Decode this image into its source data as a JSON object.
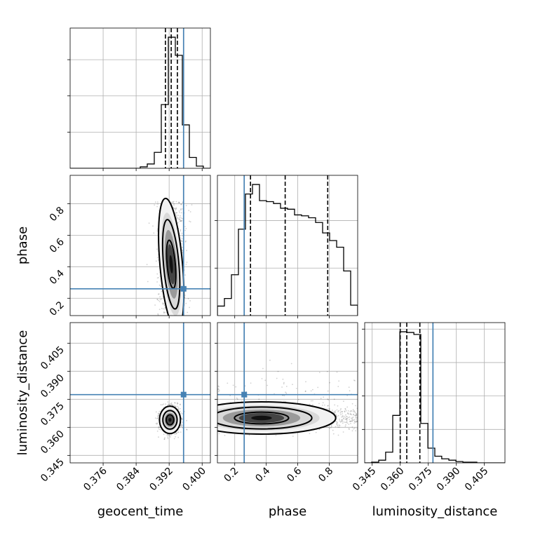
{
  "chart_data": {
    "type": "corner",
    "truth_color": "#4682b4",
    "hist_color": "#000000",
    "parameters": [
      {
        "name": "geocent_time",
        "label": "geocent_time",
        "range": [
          0.368,
          0.402
        ],
        "ticks": [
          0.376,
          0.384,
          0.392,
          0.4
        ],
        "tick_labels": [
          "0.376",
          "0.384",
          "0.392",
          "0.400"
        ],
        "truth": 0.3955
      },
      {
        "name": "phase",
        "label": "phase",
        "range": [
          0.09,
          0.98
        ],
        "ticks": [
          0.2,
          0.4,
          0.6,
          0.8
        ],
        "tick_labels": [
          "0.2",
          "0.4",
          "0.6",
          "0.8"
        ],
        "truth": 0.26
      },
      {
        "name": "luminosity_distance",
        "label": "luminosity_distance",
        "range": [
          0.341,
          0.416
        ],
        "ticks": [
          0.345,
          0.36,
          0.375,
          0.39,
          0.405
        ],
        "tick_labels": [
          "0.345",
          "0.360",
          "0.375",
          "0.390",
          "0.405"
        ],
        "truth": 0.3775
      }
    ],
    "histograms": [
      {
        "param": "geocent_time",
        "bin_edges": [
          0.368,
          0.3697,
          0.3714,
          0.3731,
          0.3748,
          0.3765,
          0.3782,
          0.3799,
          0.3816,
          0.3833,
          0.385,
          0.3867,
          0.3884,
          0.3901,
          0.3918,
          0.3935,
          0.3952,
          0.3969,
          0.3986,
          0.4003,
          0.402
        ],
        "counts": [
          0,
          0,
          0,
          0,
          0,
          0,
          0,
          0,
          0,
          0,
          2,
          6,
          22,
          88,
          181,
          156,
          60,
          15,
          3,
          0
        ],
        "quantiles": [
          0.3911,
          0.3925,
          0.394
        ]
      },
      {
        "param": "phase",
        "bin_edges": [
          0.09,
          0.1345,
          0.179,
          0.2235,
          0.268,
          0.3125,
          0.357,
          0.4015,
          0.446,
          0.4905,
          0.535,
          0.5795,
          0.624,
          0.6685,
          0.713,
          0.7575,
          0.802,
          0.8465,
          0.891,
          0.9355,
          0.98
        ],
        "counts": [
          10,
          18,
          43,
          91,
          128,
          138,
          121,
          120,
          118,
          113,
          112,
          106,
          105,
          103,
          98,
          87,
          79,
          72,
          47,
          11
        ],
        "quantiles": [
          0.3,
          0.52,
          0.79
        ]
      },
      {
        "param": "luminosity_distance",
        "bin_edges": [
          0.341,
          0.3447,
          0.3485,
          0.3522,
          0.356,
          0.3598,
          0.3635,
          0.3673,
          0.371,
          0.3748,
          0.3785,
          0.3822,
          0.386,
          0.3898,
          0.3935,
          0.3972,
          0.401,
          0.4048,
          0.4085,
          0.4122,
          0.416
        ],
        "counts": [
          0,
          1,
          4,
          16,
          71,
          196,
          195,
          192,
          59,
          22,
          10,
          6,
          4,
          2,
          1,
          1,
          0,
          0,
          0,
          0
        ],
        "quantiles": [
          0.36,
          0.3635,
          0.3705
        ]
      }
    ],
    "pairs": [
      {
        "x": "geocent_time",
        "y": "phase",
        "truth_marker": [
          0.3955,
          0.26
        ],
        "posterior_peak": [
          0.3925,
          0.38
        ],
        "credible_levels": [
          "39%",
          "86%",
          "99%"
        ]
      },
      {
        "x": "geocent_time",
        "y": "luminosity_distance",
        "truth_marker": [
          0.3955,
          0.3775
        ],
        "posterior_peak": [
          0.3922,
          0.364
        ],
        "credible_levels": [
          "39%",
          "86%",
          "99%"
        ]
      },
      {
        "x": "phase",
        "y": "luminosity_distance",
        "truth_marker": [
          0.26,
          0.3775
        ],
        "posterior_peak": [
          0.37,
          0.365
        ],
        "credible_levels": [
          "39%",
          "86%",
          "99%"
        ]
      }
    ],
    "grid": true
  }
}
